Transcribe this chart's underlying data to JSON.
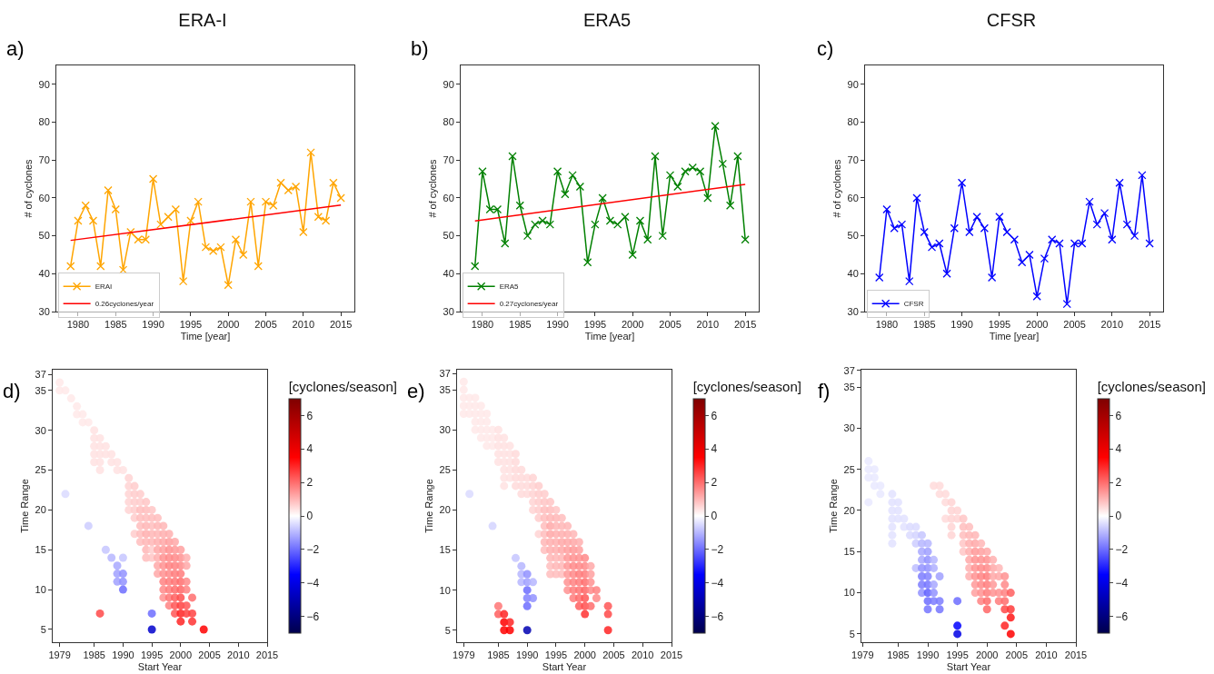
{
  "chart_data": [
    {
      "type": "line",
      "title": "ERA-I",
      "annotations": [
        "a)"
      ],
      "xlabel": "Time [year]",
      "ylabel": "# of cyclones",
      "xlim": [
        1977.1,
        2016.8
      ],
      "ylim": [
        30,
        95
      ],
      "xticks": [
        1980,
        1985,
        1990,
        1995,
        2000,
        2005,
        2010,
        2015
      ],
      "yticks": [
        30,
        40,
        50,
        60,
        70,
        80,
        90
      ],
      "legend": "bottom left",
      "grid": false,
      "series": [
        {
          "name": "ERAI",
          "color": "#ffa500",
          "marker": "cross",
          "x": [
            1979,
            1980,
            1981,
            1982,
            1983,
            1984,
            1985,
            1986,
            1987,
            1988,
            1989,
            1990,
            1991,
            1992,
            1993,
            1994,
            1995,
            1996,
            1997,
            1998,
            1999,
            2000,
            2001,
            2002,
            2003,
            2004,
            2005,
            2006,
            2007,
            2008,
            2009,
            2010,
            2011,
            2012,
            2013,
            2014,
            2015
          ],
          "values": [
            42,
            54,
            58,
            54,
            42,
            62,
            57,
            41,
            51,
            49,
            49,
            65,
            53,
            55,
            57,
            38,
            54,
            59,
            47,
            46,
            47,
            37,
            49,
            45,
            59,
            42,
            59,
            58,
            64,
            62,
            63,
            51,
            72,
            55,
            54,
            64,
            60
          ]
        },
        {
          "name": "0.26cyclones/year",
          "type": "line",
          "color": "#ff0000",
          "marker": "none",
          "x": [
            1979,
            2015
          ],
          "values": [
            48.8,
            58.1
          ]
        }
      ]
    },
    {
      "type": "line",
      "title": "ERA5",
      "annotations": [
        "b)"
      ],
      "xlabel": "Time [year]",
      "ylabel": "# of cyclones",
      "xlim": [
        1977.1,
        2016.8
      ],
      "ylim": [
        30,
        95
      ],
      "xticks": [
        1980,
        1985,
        1990,
        1995,
        2000,
        2005,
        2010,
        2015
      ],
      "yticks": [
        30,
        40,
        50,
        60,
        70,
        80,
        90
      ],
      "legend": "bottom left",
      "grid": false,
      "series": [
        {
          "name": "ERA5",
          "color": "#008000",
          "marker": "cross",
          "x": [
            1979,
            1980,
            1981,
            1982,
            1983,
            1984,
            1985,
            1986,
            1987,
            1988,
            1989,
            1990,
            1991,
            1992,
            1993,
            1994,
            1995,
            1996,
            1997,
            1998,
            1999,
            2000,
            2001,
            2002,
            2003,
            2004,
            2005,
            2006,
            2007,
            2008,
            2009,
            2010,
            2011,
            2012,
            2013,
            2014,
            2015
          ],
          "values": [
            42,
            67,
            57,
            57,
            48,
            71,
            58,
            50,
            53,
            54,
            53,
            67,
            61,
            66,
            63,
            43,
            53,
            60,
            54,
            53,
            55,
            45,
            54,
            49,
            71,
            50,
            66,
            63,
            67,
            68,
            67,
            60,
            79,
            69,
            58,
            71,
            49
          ]
        },
        {
          "name": "0.27cyclones/year",
          "type": "line",
          "color": "#ff0000",
          "marker": "none",
          "x": [
            1979,
            2015
          ],
          "values": [
            53.9,
            63.6
          ]
        }
      ]
    },
    {
      "type": "line",
      "title": "CFSR",
      "annotations": [
        "c)"
      ],
      "xlabel": "Time [year]",
      "ylabel": "# of cyclones",
      "xlim": [
        1977.1,
        2016.8
      ],
      "ylim": [
        30,
        95
      ],
      "xticks": [
        1980,
        1985,
        1990,
        1995,
        2000,
        2005,
        2010,
        2015
      ],
      "yticks": [
        30,
        40,
        50,
        60,
        70,
        80,
        90
      ],
      "legend": "bottom left",
      "grid": false,
      "series": [
        {
          "name": "CFSR",
          "color": "#0000ff",
          "marker": "cross",
          "x": [
            1979,
            1980,
            1981,
            1982,
            1983,
            1984,
            1985,
            1986,
            1987,
            1988,
            1989,
            1990,
            1991,
            1992,
            1993,
            1994,
            1995,
            1996,
            1997,
            1998,
            1999,
            2000,
            2001,
            2002,
            2003,
            2004,
            2005,
            2006,
            2007,
            2008,
            2009,
            2010,
            2011,
            2012,
            2013,
            2014,
            2015
          ],
          "values": [
            39,
            57,
            52,
            53,
            38,
            60,
            51,
            47,
            48,
            40,
            52,
            64,
            51,
            55,
            52,
            39,
            55,
            51,
            49,
            43,
            45,
            34,
            44,
            49,
            48,
            32,
            48,
            48,
            59,
            53,
            56,
            49,
            64,
            53,
            50,
            66,
            48
          ]
        }
      ]
    },
    {
      "type": "scatter",
      "annotations": [
        "d)"
      ],
      "xlabel": "Start Year",
      "ylabel": "Time Range",
      "clabel": "[cyclones/season]",
      "marker": "circle",
      "xlim": [
        1977.8,
        2015
      ],
      "ylim": [
        3.4,
        37.6
      ],
      "xticks": [
        1979,
        1985,
        1990,
        1995,
        2000,
        2005,
        2010,
        2015
      ],
      "yticks": [
        5,
        10,
        15,
        20,
        25,
        30,
        35,
        37
      ],
      "clim": [
        -7,
        7
      ],
      "cticks": [
        {
          "value": -6,
          "label": "−6"
        },
        {
          "value": -4,
          "label": "−4"
        },
        {
          "value": -2,
          "label": "−2"
        },
        0,
        2,
        4,
        6
      ],
      "grid": false,
      "x": [
        1979,
        1979,
        1980,
        1980,
        1981,
        1982,
        1982,
        1983,
        1983,
        1984,
        1984,
        1985,
        1985,
        1985,
        1985,
        1985,
        1986,
        1986,
        1986,
        1986,
        1986,
        1986,
        1987,
        1987,
        1987,
        1988,
        1988,
        1988,
        1989,
        1989,
        1989,
        1989,
        1989,
        1990,
        1990,
        1990,
        1990,
        1990,
        1991,
        1991,
        1991,
        1991,
        1991,
        1992,
        1992,
        1992,
        1992,
        1992,
        1992,
        1993,
        1993,
        1993,
        1993,
        1993,
        1993,
        1993,
        1994,
        1994,
        1994,
        1994,
        1994,
        1994,
        1994,
        1994,
        1995,
        1995,
        1995,
        1995,
        1995,
        1995,
        1995,
        1995,
        1995,
        1996,
        1996,
        1996,
        1996,
        1996,
        1996,
        1996,
        1996,
        1997,
        1997,
        1997,
        1997,
        1997,
        1997,
        1997,
        1997,
        1997,
        1997,
        1998,
        1998,
        1998,
        1998,
        1998,
        1998,
        1998,
        1998,
        1998,
        1998,
        1999,
        1999,
        1999,
        1999,
        1999,
        1999,
        1999,
        1999,
        1999,
        1999,
        2000,
        2000,
        2000,
        2000,
        2000,
        2000,
        2000,
        2000,
        2000,
        2000,
        2001,
        2001,
        2001,
        2001,
        2001,
        2001,
        2002,
        2002,
        2002,
        2004
      ],
      "values": [
        36,
        35,
        35,
        22,
        34,
        33,
        32,
        32,
        31,
        31,
        18,
        30,
        29,
        28,
        27,
        26,
        29,
        28,
        27,
        26,
        25,
        7,
        28,
        27,
        15,
        27,
        26,
        14,
        26,
        25,
        13,
        12,
        11,
        25,
        14,
        12,
        11,
        10,
        24,
        23,
        22,
        21,
        20,
        23,
        22,
        21,
        20,
        19,
        17,
        22,
        21,
        20,
        19,
        18,
        17,
        16,
        21,
        20,
        19,
        18,
        17,
        16,
        15,
        14,
        20,
        19,
        18,
        17,
        16,
        15,
        14,
        7,
        5,
        19,
        18,
        17,
        16,
        15,
        14,
        13,
        12,
        18,
        17,
        16,
        15,
        14,
        13,
        12,
        11,
        10,
        9,
        17,
        16,
        15,
        14,
        13,
        12,
        11,
        10,
        9,
        8,
        16,
        15,
        14,
        13,
        12,
        11,
        10,
        9,
        8,
        7,
        15,
        14,
        13,
        12,
        11,
        10,
        9,
        8,
        7,
        6,
        14,
        13,
        11,
        10,
        8,
        7,
        9,
        7,
        6,
        5
      ],
      "cvalues": [
        0.3,
        0.3,
        0.3,
        -0.5,
        0.3,
        0.3,
        0.3,
        0.3,
        0.3,
        0.3,
        -0.7,
        0.4,
        0.4,
        0.4,
        0.4,
        0.4,
        0.4,
        0.4,
        0.4,
        0.4,
        0.4,
        2.5,
        0.4,
        0.4,
        -0.8,
        0.4,
        0.4,
        -1,
        0.4,
        0.4,
        -1.2,
        -1.3,
        -1.3,
        0.4,
        -0.8,
        -1.5,
        -1.5,
        -2,
        0.6,
        0.6,
        0.6,
        0.6,
        0.6,
        0.7,
        0.7,
        0.7,
        0.7,
        0.7,
        0.7,
        0.7,
        0.7,
        0.9,
        0.9,
        0.9,
        0.9,
        0.9,
        0.8,
        0.9,
        0.9,
        1.0,
        1.1,
        1.0,
        1.0,
        0.9,
        0.8,
        0.9,
        0.9,
        1.0,
        1.0,
        0.7,
        0.8,
        -2,
        -4.5,
        0.9,
        1.0,
        1.0,
        1.1,
        1.2,
        1.1,
        1.2,
        1.2,
        1.0,
        1.1,
        1.2,
        1.3,
        1.5,
        1.5,
        1.5,
        1.7,
        1.6,
        1.5,
        1.1,
        1.3,
        1.5,
        1.6,
        1.7,
        1.6,
        1.8,
        1.8,
        1.9,
        1.7,
        1.2,
        1.4,
        1.6,
        1.7,
        1.8,
        1.9,
        2.0,
        2.2,
        2.3,
        2.3,
        1.3,
        1.5,
        1.6,
        1.8,
        2.0,
        2.1,
        2.4,
        2.6,
        3.0,
        3.0,
        1.1,
        1.2,
        1.6,
        1.7,
        2.3,
        2.6,
        2.0,
        2.6,
        2.8,
        3.5
      ]
    },
    {
      "type": "scatter",
      "annotations": [
        "e)"
      ],
      "xlabel": "Start Year",
      "ylabel": "Time Range",
      "clabel": "[cyclones/season]",
      "marker": "circle",
      "xlim": [
        1977.85,
        2015
      ],
      "ylim": [
        3.5,
        37.5
      ],
      "xticks": [
        1979,
        1985,
        1990,
        1995,
        2000,
        2005,
        2010,
        2015
      ],
      "yticks": [
        5,
        10,
        15,
        20,
        25,
        30,
        35,
        37
      ],
      "clim": [
        -7,
        7
      ],
      "cticks": [
        {
          "value": -6,
          "label": "−6"
        },
        {
          "value": -4,
          "label": "−4"
        },
        {
          "value": -2,
          "label": "−2"
        },
        0,
        2,
        4,
        6
      ],
      "grid": false,
      "x": [
        1979,
        1979,
        1979,
        1979,
        1979,
        1980,
        1980,
        1980,
        1980,
        1981,
        1981,
        1981,
        1981,
        1981,
        1982,
        1982,
        1982,
        1982,
        1982,
        1983,
        1983,
        1983,
        1983,
        1983,
        1984,
        1984,
        1984,
        1984,
        1985,
        1985,
        1985,
        1985,
        1985,
        1985,
        1985,
        1986,
        1986,
        1986,
        1986,
        1986,
        1986,
        1986,
        1986,
        1986,
        1986,
        1987,
        1987,
        1987,
        1987,
        1987,
        1987,
        1987,
        1988,
        1988,
        1988,
        1988,
        1988,
        1988,
        1989,
        1989,
        1989,
        1989,
        1989,
        1989,
        1989,
        1990,
        1990,
        1990,
        1990,
        1990,
        1990,
        1990,
        1990,
        1990,
        1991,
        1991,
        1991,
        1991,
        1991,
        1991,
        1991,
        1992,
        1992,
        1992,
        1992,
        1992,
        1992,
        1993,
        1993,
        1993,
        1993,
        1993,
        1993,
        1993,
        1993,
        1994,
        1994,
        1994,
        1994,
        1994,
        1994,
        1994,
        1994,
        1994,
        1994,
        1995,
        1995,
        1995,
        1995,
        1995,
        1995,
        1995,
        1995,
        1995,
        1996,
        1996,
        1996,
        1996,
        1996,
        1996,
        1996,
        1996,
        1997,
        1997,
        1997,
        1997,
        1997,
        1997,
        1997,
        1997,
        1997,
        1998,
        1998,
        1998,
        1998,
        1998,
        1998,
        1998,
        1998,
        1998,
        1999,
        1999,
        1999,
        1999,
        1999,
        1999,
        1999,
        1999,
        1999,
        2000,
        2000,
        2000,
        2000,
        2000,
        2000,
        2000,
        2000,
        2001,
        2001,
        2001,
        2001,
        2001,
        2002,
        2002,
        2004,
        2004,
        2004
      ],
      "values": [
        36,
        35,
        34,
        33,
        32,
        34,
        33,
        32,
        22,
        34,
        33,
        32,
        31,
        30,
        33,
        32,
        31,
        30,
        29,
        32,
        31,
        30,
        29,
        28,
        30,
        29,
        28,
        18,
        30,
        29,
        28,
        27,
        26,
        8,
        7,
        29,
        28,
        27,
        26,
        25,
        24,
        23,
        7,
        6,
        5,
        28,
        27,
        26,
        25,
        24,
        6,
        5,
        27,
        26,
        25,
        24,
        23,
        14,
        25,
        24,
        23,
        22,
        13,
        12,
        11,
        24,
        23,
        22,
        12,
        11,
        10,
        9,
        8,
        5,
        24,
        23,
        22,
        21,
        20,
        11,
        9,
        23,
        22,
        21,
        20,
        19,
        17,
        22,
        21,
        20,
        19,
        18,
        17,
        16,
        15,
        21,
        20,
        19,
        18,
        17,
        16,
        15,
        14,
        13,
        12,
        20,
        19,
        18,
        17,
        16,
        15,
        14,
        13,
        12,
        19,
        18,
        17,
        16,
        15,
        14,
        13,
        12,
        18,
        17,
        16,
        15,
        14,
        13,
        12,
        11,
        10,
        17,
        16,
        15,
        14,
        13,
        12,
        11,
        10,
        9,
        16,
        15,
        14,
        13,
        12,
        11,
        10,
        9,
        8,
        14,
        13,
        12,
        11,
        10,
        9,
        8,
        7,
        13,
        12,
        11,
        10,
        8,
        10,
        9,
        8,
        7,
        5
      ],
      "cvalues": [
        0.3,
        0.3,
        0.3,
        0.3,
        0.3,
        0.3,
        0.3,
        0.3,
        -0.5,
        0.3,
        0.3,
        0.3,
        0.3,
        0.3,
        0.3,
        0.3,
        0.3,
        0.3,
        0.3,
        0.3,
        0.3,
        0.3,
        0.3,
        0.3,
        0.3,
        0.3,
        0.3,
        -0.6,
        0.4,
        0.4,
        0.4,
        0.4,
        0.4,
        1.9,
        2.2,
        0.4,
        0.4,
        0.4,
        0.4,
        0.4,
        0.4,
        0.4,
        3.0,
        3.5,
        3.5,
        0.4,
        0.4,
        0.4,
        0.4,
        0.4,
        3.0,
        3.5,
        0.5,
        0.5,
        0.5,
        0.5,
        0.5,
        -0.8,
        0.5,
        0.5,
        0.5,
        0.5,
        -1,
        -1,
        -1,
        0.5,
        0.5,
        0.5,
        -1.5,
        -1.3,
        -2,
        -1.7,
        -2,
        -5,
        0.6,
        0.6,
        0.6,
        0.6,
        0.6,
        -1,
        -1.5,
        0.7,
        0.7,
        0.7,
        0.7,
        0.7,
        0.6,
        0.7,
        0.8,
        0.9,
        0.9,
        0.9,
        0.9,
        1.0,
        0.9,
        0.8,
        0.9,
        1.0,
        1.2,
        1.2,
        1.1,
        1.1,
        1.0,
        0.9,
        0.9,
        0.8,
        1.0,
        1.0,
        1.1,
        1.1,
        1.1,
        1.0,
        1.0,
        0.9,
        0.9,
        1.0,
        1.1,
        1.2,
        1.2,
        1.0,
        1.0,
        0.9,
        1.0,
        1.1,
        1.2,
        1.3,
        1.4,
        1.4,
        1.4,
        1.5,
        1.5,
        1.0,
        1.2,
        1.4,
        1.5,
        1.6,
        1.6,
        1.7,
        1.8,
        1.8,
        1.1,
        1.3,
        1.5,
        1.6,
        1.8,
        1.8,
        1.9,
        2.0,
        2.2,
        1.6,
        1.6,
        1.8,
        2.0,
        2.1,
        2.3,
        2.4,
        2.8,
        1.2,
        1.3,
        1.5,
        1.6,
        2.0,
        1.7,
        1.6,
        2.3,
        2.5,
        3.0
      ]
    },
    {
      "type": "scatter",
      "annotations": [
        "f)"
      ],
      "xlabel": "Start Year",
      "ylabel": "Time Range",
      "clabel": "[cyclones/season]",
      "marker": "circle",
      "xlim": [
        1978.8,
        2015
      ],
      "ylim": [
        4,
        37.1
      ],
      "xticks": [
        1979,
        1985,
        1990,
        1995,
        2000,
        2005,
        2010,
        2015
      ],
      "yticks": [
        5,
        10,
        15,
        20,
        25,
        30,
        35,
        37
      ],
      "clim": [
        -7,
        7
      ],
      "cticks": [
        {
          "value": -6,
          "label": "−6"
        },
        {
          "value": -4,
          "label": "−4"
        },
        {
          "value": -2,
          "label": "−2"
        },
        0,
        2,
        4,
        6
      ],
      "grid": false,
      "x": [
        1980,
        1980,
        1980,
        1980,
        1981,
        1981,
        1981,
        1982,
        1982,
        1984,
        1984,
        1984,
        1984,
        1984,
        1984,
        1984,
        1985,
        1985,
        1985,
        1986,
        1986,
        1987,
        1987,
        1988,
        1988,
        1988,
        1988,
        1989,
        1989,
        1989,
        1989,
        1989,
        1989,
        1989,
        1989,
        1990,
        1990,
        1990,
        1990,
        1990,
        1990,
        1990,
        1990,
        1990,
        1991,
        1991,
        1991,
        1991,
        1991,
        1991,
        1992,
        1992,
        1992,
        1992,
        1992,
        1993,
        1993,
        1993,
        1994,
        1994,
        1994,
        1994,
        1994,
        1995,
        1995,
        1995,
        1995,
        1995,
        1996,
        1996,
        1996,
        1996,
        1996,
        1997,
        1997,
        1997,
        1997,
        1997,
        1997,
        1997,
        1998,
        1998,
        1998,
        1998,
        1998,
        1998,
        1998,
        1998,
        1999,
        1999,
        1999,
        1999,
        1999,
        1999,
        1999,
        1999,
        2000,
        2000,
        2000,
        2000,
        2000,
        2000,
        2000,
        2000,
        2001,
        2001,
        2001,
        2001,
        2001,
        2002,
        2002,
        2002,
        2002,
        2003,
        2003,
        2003,
        2003,
        2003,
        2003,
        2004,
        2004,
        2004,
        2004
      ],
      "values": [
        26,
        25,
        24,
        21,
        25,
        24,
        23,
        23,
        22,
        22,
        21,
        20,
        19,
        18,
        17,
        16,
        21,
        20,
        19,
        19,
        18,
        18,
        17,
        18,
        17,
        16,
        13,
        17,
        16,
        15,
        14,
        13,
        12,
        11,
        10,
        16,
        15,
        14,
        13,
        12,
        11,
        10,
        9,
        8,
        23,
        14,
        13,
        11,
        10,
        9,
        23,
        22,
        12,
        9,
        8,
        22,
        21,
        19,
        21,
        20,
        19,
        18,
        17,
        20,
        19,
        9,
        6,
        5,
        19,
        18,
        17,
        16,
        15,
        18,
        17,
        16,
        15,
        14,
        13,
        12,
        17,
        16,
        15,
        14,
        13,
        12,
        11,
        10,
        16,
        15,
        14,
        13,
        12,
        11,
        10,
        9,
        15,
        14,
        13,
        12,
        11,
        10,
        9,
        8,
        14,
        13,
        12,
        11,
        10,
        13,
        12,
        10,
        9,
        12,
        11,
        10,
        9,
        8,
        6,
        10,
        8,
        7,
        5
      ],
      "cvalues": [
        -0.3,
        -0.3,
        -0.3,
        -0.3,
        -0.3,
        -0.3,
        -0.3,
        -0.3,
        -0.3,
        -0.4,
        -0.4,
        -0.4,
        -0.4,
        -0.4,
        -0.4,
        -0.4,
        -0.4,
        -0.4,
        -0.4,
        -0.4,
        -0.4,
        -0.5,
        -0.5,
        -0.5,
        -0.6,
        -0.7,
        -0.9,
        -0.8,
        -1.0,
        -1.2,
        -1.2,
        -1.5,
        -1.8,
        -1.8,
        -1.5,
        -1.0,
        -1.3,
        -1.5,
        -1.5,
        -1.7,
        -1.9,
        -2.2,
        -2.0,
        -1.9,
        0.5,
        -1.0,
        -1.1,
        -1.2,
        -1.5,
        -1.8,
        0.5,
        0.5,
        -1.3,
        -1.8,
        -1.9,
        0.5,
        0.5,
        0.5,
        0.6,
        0.6,
        0.6,
        0.6,
        0.6,
        0.6,
        0.6,
        -2.0,
        -3.5,
        -4.0,
        0.8,
        0.9,
        0.9,
        0.8,
        0.8,
        0.9,
        1.0,
        1.1,
        1.1,
        1.2,
        1.1,
        1.1,
        1.0,
        1.2,
        1.4,
        1.5,
        1.5,
        1.5,
        1.4,
        1.3,
        1.0,
        1.3,
        1.5,
        1.6,
        1.7,
        1.6,
        1.5,
        1.7,
        1.2,
        1.5,
        1.6,
        1.8,
        1.8,
        1.8,
        2.0,
        2.1,
        1.1,
        1.2,
        1.2,
        1.4,
        1.5,
        1.0,
        1.2,
        1.5,
        1.8,
        1.5,
        1.6,
        1.7,
        2.0,
        2.5,
        3.0,
        2.2,
        2.7,
        3.2,
        3.5
      ]
    }
  ]
}
